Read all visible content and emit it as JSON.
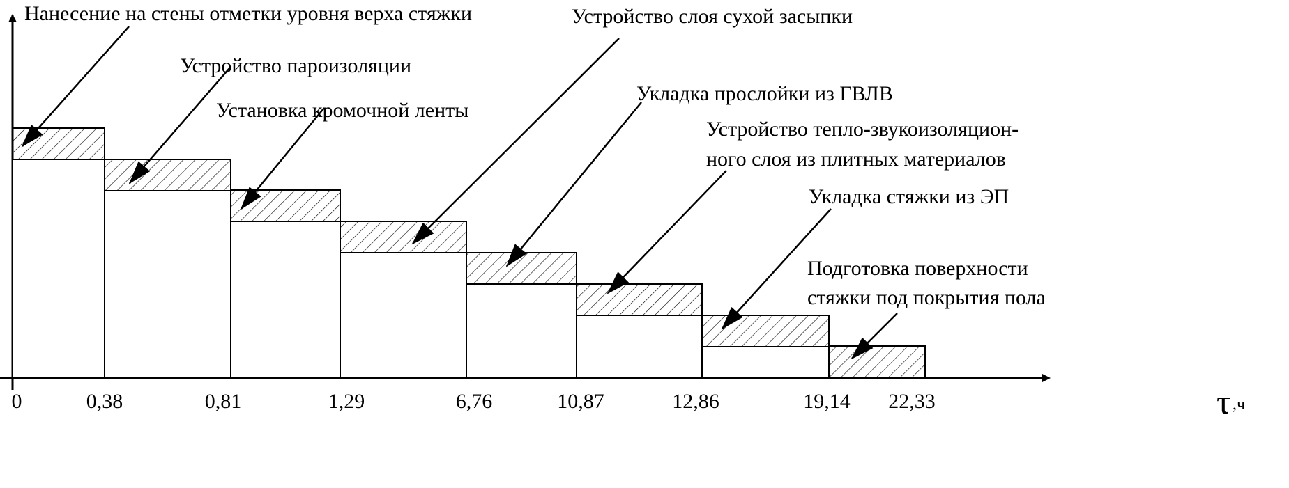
{
  "chart_data": {
    "type": "bar",
    "x_ticks": [
      "0",
      "0,38",
      "0,81",
      "1,29",
      "6,76",
      "10,87",
      "12,86",
      "19,14",
      "22,33"
    ],
    "x_symbol": "τ",
    "x_unit": ",ч",
    "steps": [
      {
        "label": "Нанесение на стены отметки уровня верха стяжки",
        "t_start": 0,
        "t_end": 0.38
      },
      {
        "label": "Устройство пароизоляции",
        "t_start": 0.38,
        "t_end": 0.81
      },
      {
        "label": "Установка кромочной ленты",
        "t_start": 0.81,
        "t_end": 1.29
      },
      {
        "label": "Устройство слоя сухой засыпки",
        "t_start": 1.29,
        "t_end": 6.76
      },
      {
        "label": "Укладка прослойки из ГВЛВ",
        "t_start": 6.76,
        "t_end": 10.87
      },
      {
        "label_lines": [
          "Устройство тепло-звукоизоляцион-",
          "ного слоя из плитных материалов"
        ],
        "t_start": 10.87,
        "t_end": 12.86
      },
      {
        "label": "Укладка стяжки из ЭП",
        "t_start": 12.86,
        "t_end": 19.14
      },
      {
        "label_lines": [
          "Подготовка поверхности",
          "стяжки под покрытия пола"
        ],
        "t_start": 19.14,
        "t_end": 22.33
      }
    ],
    "hatch_color": "#000000",
    "line_color": "#000000"
  }
}
